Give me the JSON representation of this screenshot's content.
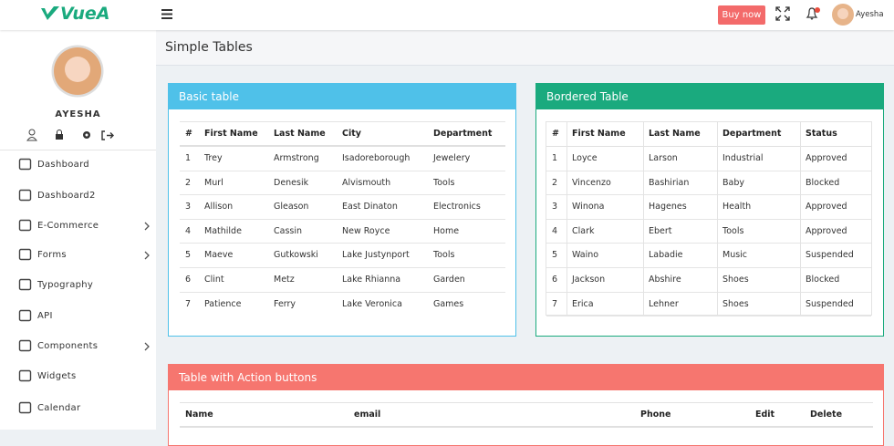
{
  "header": {
    "logo": "VueA",
    "buy_now": "Buy now",
    "user_name": "Ayesha"
  },
  "sidebar": {
    "profile_name": "AYESHA",
    "menu": [
      {
        "label": "Dashboard",
        "expandable": false
      },
      {
        "label": "Dashboard2",
        "expandable": false
      },
      {
        "label": "E-Commerce",
        "expandable": true
      },
      {
        "label": "Forms",
        "expandable": true
      },
      {
        "label": "Typography",
        "expandable": false
      },
      {
        "label": "API",
        "expandable": false
      },
      {
        "label": "Components",
        "expandable": true
      },
      {
        "label": "Widgets",
        "expandable": false
      },
      {
        "label": "Calendar",
        "expandable": false
      }
    ]
  },
  "page_title": "Simple Tables",
  "basic_table": {
    "title": "Basic table",
    "columns": [
      "#",
      "First Name",
      "Last Name",
      "City",
      "Department"
    ],
    "rows": [
      [
        1,
        "Trey",
        "Armstrong",
        "Isadoreborough",
        "Jewelery"
      ],
      [
        2,
        "Murl",
        "Denesik",
        "Alvismouth",
        "Tools"
      ],
      [
        3,
        "Allison",
        "Gleason",
        "East Dinaton",
        "Electronics"
      ],
      [
        4,
        "Mathilde",
        "Cassin",
        "New Royce",
        "Home"
      ],
      [
        5,
        "Maeve",
        "Gutkowski",
        "Lake Justynport",
        "Tools"
      ],
      [
        6,
        "Clint",
        "Metz",
        "Lake Rhianna",
        "Garden"
      ],
      [
        7,
        "Patience",
        "Ferry",
        "Lake Veronica",
        "Games"
      ]
    ]
  },
  "bordered_table": {
    "title": "Bordered Table",
    "columns": [
      "#",
      "First Name",
      "Last Name",
      "Department",
      "Status"
    ],
    "rows": [
      [
        1,
        "Loyce",
        "Larson",
        "Industrial",
        "Approved"
      ],
      [
        2,
        "Vincenzo",
        "Bashirian",
        "Baby",
        "Blocked"
      ],
      [
        3,
        "Winona",
        "Hagenes",
        "Health",
        "Approved"
      ],
      [
        4,
        "Clark",
        "Ebert",
        "Tools",
        "Approved"
      ],
      [
        5,
        "Waino",
        "Labadie",
        "Music",
        "Suspended"
      ],
      [
        6,
        "Jackson",
        "Abshire",
        "Shoes",
        "Blocked"
      ],
      [
        7,
        "Erica",
        "Lehner",
        "Shoes",
        "Suspended"
      ]
    ]
  },
  "action_table": {
    "title": "Table with Action buttons",
    "columns": [
      "Name",
      "email",
      "Phone",
      "Edit",
      "Delete"
    ]
  }
}
